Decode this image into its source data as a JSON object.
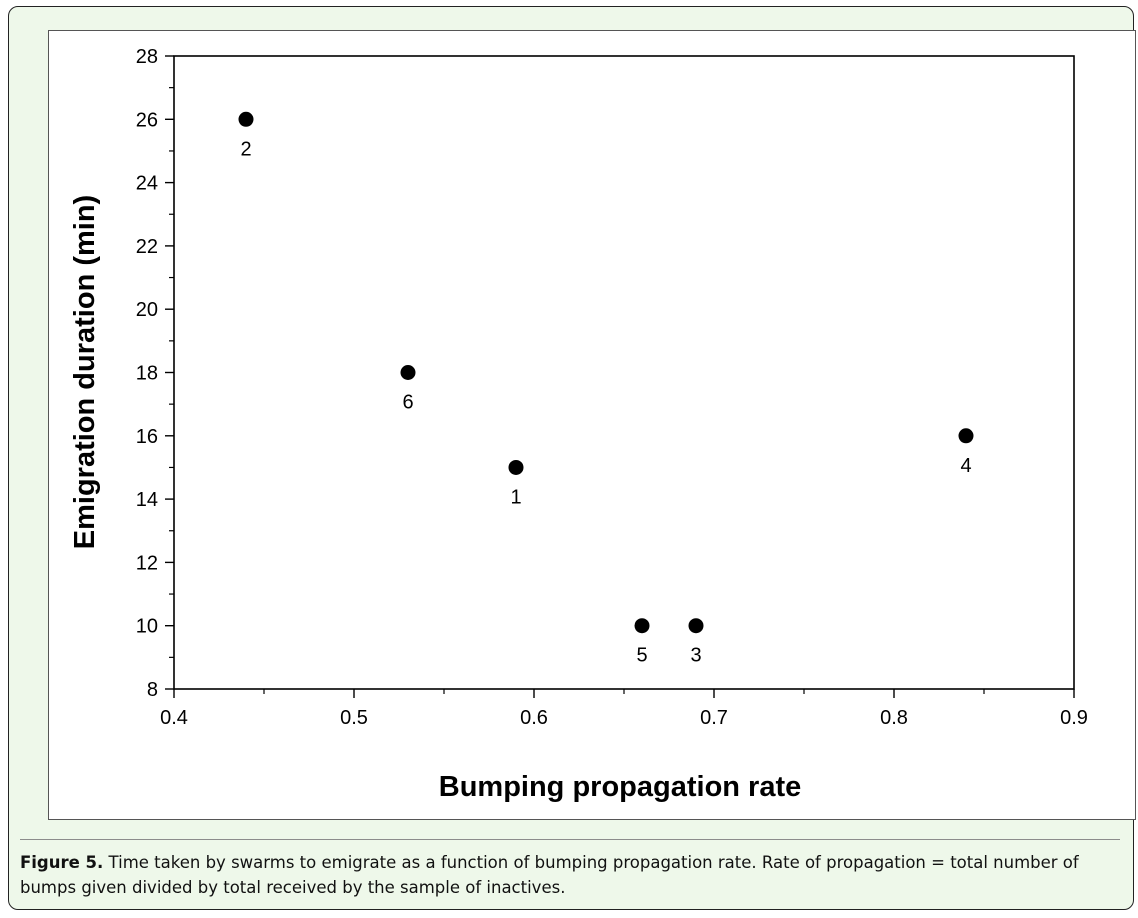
{
  "chart_data": {
    "type": "scatter",
    "xlabel": "Bumping propagation rate",
    "ylabel": "Emigration duration (min)",
    "xlim": [
      0.4,
      0.9
    ],
    "ylim": [
      8,
      28
    ],
    "x_ticks": [
      "0.4",
      "0.5",
      "0.6",
      "0.7",
      "0.8",
      "0.9"
    ],
    "y_ticks": [
      "8",
      "10",
      "12",
      "14",
      "16",
      "18",
      "20",
      "22",
      "24",
      "26",
      "28"
    ],
    "grid": false,
    "points": [
      {
        "label": "1",
        "x": 0.59,
        "y": 15
      },
      {
        "label": "2",
        "x": 0.44,
        "y": 26
      },
      {
        "label": "3",
        "x": 0.69,
        "y": 10
      },
      {
        "label": "4",
        "x": 0.84,
        "y": 16
      },
      {
        "label": "5",
        "x": 0.66,
        "y": 10
      },
      {
        "label": "6",
        "x": 0.53,
        "y": 18
      }
    ],
    "marker_color": "#000000"
  },
  "caption": {
    "label": "Figure 5.",
    "text": " Time taken by swarms to emigrate as a function of bumping propagation rate. Rate of propagation = total number of bumps given divided by total received by the sample of inactives."
  }
}
